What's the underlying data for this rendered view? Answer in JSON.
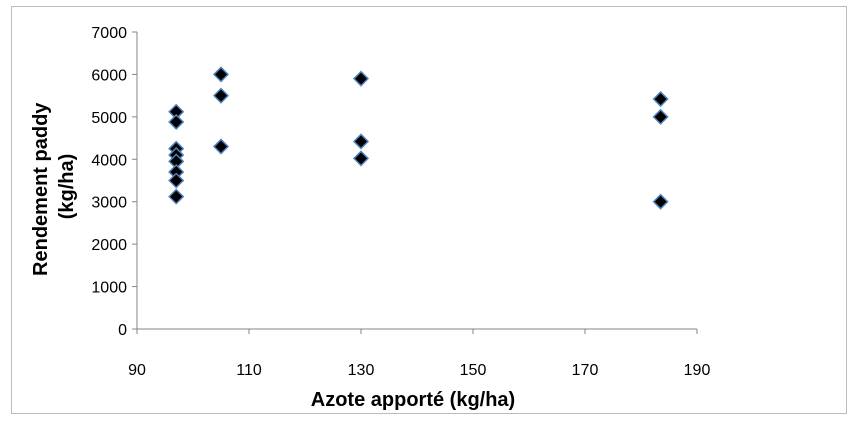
{
  "chart_data": {
    "type": "scatter",
    "title": "",
    "xlabel": "Azote apporté (kg/ha)",
    "ylabel_lines": [
      "Rendement paddy",
      "(kg/ha)"
    ],
    "xlim": [
      90,
      190
    ],
    "ylim": [
      0,
      7000
    ],
    "xticks": [
      90,
      110,
      130,
      150,
      170,
      190
    ],
    "yticks": [
      0,
      1000,
      2000,
      3000,
      4000,
      5000,
      6000,
      7000
    ],
    "grid": false,
    "legend": "none",
    "marker": "diamond",
    "marker_fill": "#000000",
    "marker_edge": "#4f81bd",
    "points": [
      {
        "x": 97,
        "y": 5120
      },
      {
        "x": 97,
        "y": 4880
      },
      {
        "x": 97,
        "y": 4250
      },
      {
        "x": 97,
        "y": 4100
      },
      {
        "x": 97,
        "y": 3950
      },
      {
        "x": 97,
        "y": 3700
      },
      {
        "x": 97,
        "y": 3500
      },
      {
        "x": 97,
        "y": 3120
      },
      {
        "x": 105,
        "y": 6000
      },
      {
        "x": 105,
        "y": 5500
      },
      {
        "x": 105,
        "y": 4300
      },
      {
        "x": 130,
        "y": 5900
      },
      {
        "x": 130,
        "y": 4420
      },
      {
        "x": 130,
        "y": 4020
      },
      {
        "x": 183.5,
        "y": 5420
      },
      {
        "x": 183.5,
        "y": 5000
      },
      {
        "x": 183.5,
        "y": 3000
      }
    ]
  }
}
